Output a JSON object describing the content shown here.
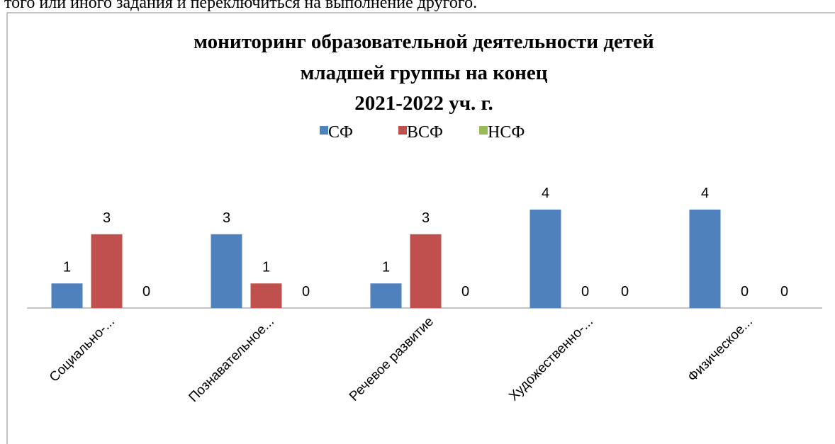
{
  "header_text": "того или иного задания и переключиться на выполнение другого.",
  "chart_data": {
    "type": "bar",
    "title": [
      "мониторинг образовательной деятельности детей",
      "младшей группы на конец",
      "2021-2022 уч. г."
    ],
    "categories": [
      "Социально-...",
      "Познавательное...",
      "Речевое развитие",
      "Художественно-...",
      "Физическое..."
    ],
    "series": [
      {
        "name": "СФ",
        "color": "#4f81bd",
        "values": [
          1,
          3,
          1,
          4,
          4
        ]
      },
      {
        "name": "ВСФ",
        "color": "#c0504d",
        "values": [
          3,
          1,
          3,
          0,
          0
        ]
      },
      {
        "name": "НСФ",
        "color": "#9bbb59",
        "values": [
          0,
          0,
          0,
          0,
          0
        ]
      }
    ],
    "legend": "top"
  }
}
